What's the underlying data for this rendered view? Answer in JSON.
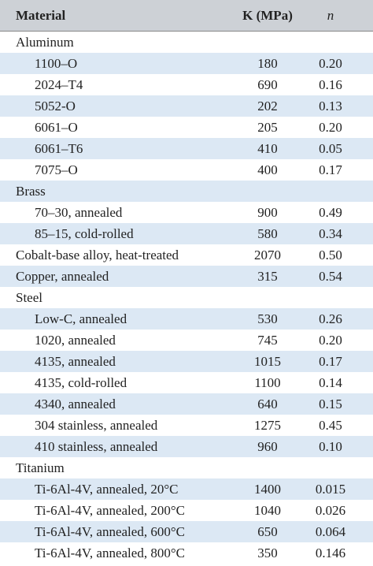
{
  "table": {
    "header": [
      "Material",
      "K (MPa)",
      "n"
    ],
    "rows": [
      {
        "material": "Aluminum",
        "items": [
          {
            "material": "1100–O",
            "K": "180",
            "n": "0.20"
          },
          {
            "material": "2024–T4",
            "K": "690",
            "n": "0.16"
          },
          {
            "material": "5052-O",
            "K": "202",
            "n": "0.13"
          },
          {
            "material": "6061–O",
            "K": "205",
            "n": "0.20"
          },
          {
            "material": "6061–T6",
            "K": "410",
            "n": "0.05"
          },
          {
            "material": "7075–O",
            "K": "400",
            "n": "0.17"
          }
        ]
      },
      {
        "material": "Brass",
        "items": [
          {
            "material": "70–30, annealed",
            "K": "900",
            "n": "0.49"
          },
          {
            "material": "85–15, cold-rolled",
            "K": "580",
            "n": "0.34"
          }
        ]
      },
      {
        "material": "Cobalt-base alloy, heat-treated",
        "K": "2070",
        "n": "0.50"
      },
      {
        "material": "Copper, annealed",
        "K": "315",
        "n": "0.54"
      },
      {
        "material": "Steel",
        "items": [
          {
            "material": "Low-C, annealed",
            "K": "530",
            "n": "0.26"
          },
          {
            "material": "1020, annealed",
            "K": "745",
            "n": "0.20"
          },
          {
            "material": "4135, annealed",
            "K": "1015",
            "n": "0.17"
          },
          {
            "material": "4135, cold-rolled",
            "K": "1100",
            "n": "0.14"
          },
          {
            "material": "4340, annealed",
            "K": "640",
            "n": "0.15"
          },
          {
            "material": "304 stainless, annealed",
            "K": "1275",
            "n": "0.45"
          },
          {
            "material": "410 stainless, annealed",
            "K": "960",
            "n": "0.10"
          }
        ]
      },
      {
        "material": "Titanium",
        "items": [
          {
            "material": "Ti-6Al-4V, annealed, 20°C",
            "K": "1400",
            "n": "0.015"
          },
          {
            "material": "Ti-6Al-4V, annealed, 200°C",
            "K": "1040",
            "n": "0.026"
          },
          {
            "material": "Ti-6Al-4V, annealed, 600°C",
            "K": "650",
            "n": "0.064"
          },
          {
            "material": "Ti-6Al-4V, annealed, 800°C",
            "K": "350",
            "n": "0.146"
          }
        ]
      }
    ]
  }
}
